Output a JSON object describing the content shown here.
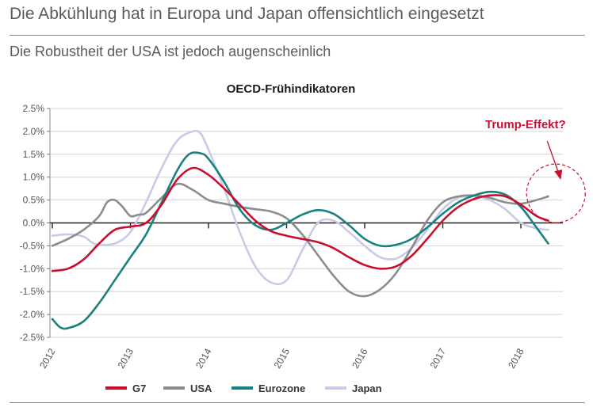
{
  "header": {
    "title": "Die Abkühlung hat in Europa und Japan offensichtlich eingesetzt",
    "subtitle": "Die Robustheit der USA ist jedoch augenscheinlich"
  },
  "chart_data": {
    "type": "line",
    "title": "OECD-Frühindikatoren",
    "xlabel": "",
    "ylabel": "",
    "xlim": [
      2012,
      2018.65
    ],
    "ylim": [
      -2.5,
      2.5
    ],
    "y_ticks": [
      2.5,
      2.0,
      1.5,
      1.0,
      0.5,
      0.0,
      -0.5,
      -1.0,
      -1.5,
      -2.0,
      -2.5
    ],
    "y_tick_labels": [
      "2.5%",
      "2.0%",
      "1.5%",
      "1.0%",
      "0.5%",
      "0.0%",
      "-0.5%",
      "-1.0%",
      "-1.5%",
      "-2.0%",
      "-2.5%"
    ],
    "x_ticks": [
      2012,
      2013,
      2014,
      2015,
      2016,
      2017,
      2018
    ],
    "x_tick_labels": [
      "2012",
      "2013",
      "2014",
      "2015",
      "2016",
      "2017",
      "2018"
    ],
    "grid": "horizontal",
    "legend_position": "bottom",
    "annotation": {
      "text": "Trump-Effekt?",
      "color": "#c8102e",
      "target": {
        "x": 2018.5,
        "y": 0.75
      }
    },
    "series": [
      {
        "name": "G7",
        "color": "#c8102e",
        "x": [
          2012.0,
          2012.2,
          2012.4,
          2012.6,
          2012.8,
          2013.0,
          2013.2,
          2013.4,
          2013.6,
          2013.8,
          2014.0,
          2014.2,
          2014.4,
          2014.6,
          2014.8,
          2015.0,
          2015.2,
          2015.4,
          2015.6,
          2015.8,
          2016.0,
          2016.2,
          2016.4,
          2016.6,
          2016.8,
          2017.0,
          2017.2,
          2017.4,
          2017.6,
          2017.8,
          2018.0,
          2018.2,
          2018.35
        ],
        "y": [
          -1.05,
          -1.0,
          -0.8,
          -0.45,
          -0.15,
          -0.08,
          0.0,
          0.4,
          0.95,
          1.2,
          1.05,
          0.75,
          0.4,
          0.05,
          -0.18,
          -0.28,
          -0.35,
          -0.42,
          -0.55,
          -0.75,
          -0.92,
          -1.0,
          -0.95,
          -0.72,
          -0.35,
          0.05,
          0.35,
          0.52,
          0.6,
          0.58,
          0.4,
          0.15,
          0.05
        ]
      },
      {
        "name": "USA",
        "color": "#8c8c8c",
        "x": [
          2012.0,
          2012.2,
          2012.4,
          2012.6,
          2012.7,
          2012.8,
          2012.9,
          2013.0,
          2013.1,
          2013.2,
          2013.4,
          2013.6,
          2013.8,
          2014.0,
          2014.2,
          2014.4,
          2014.6,
          2014.8,
          2015.0,
          2015.2,
          2015.4,
          2015.6,
          2015.8,
          2016.0,
          2016.2,
          2016.4,
          2016.6,
          2016.8,
          2017.0,
          2017.2,
          2017.4,
          2017.6,
          2017.8,
          2018.0,
          2018.2,
          2018.35
        ],
        "y": [
          -0.5,
          -0.35,
          -0.15,
          0.15,
          0.45,
          0.5,
          0.35,
          0.15,
          0.18,
          0.22,
          0.55,
          0.85,
          0.72,
          0.5,
          0.42,
          0.35,
          0.3,
          0.25,
          0.1,
          -0.25,
          -0.7,
          -1.15,
          -1.5,
          -1.6,
          -1.45,
          -1.1,
          -0.55,
          0.05,
          0.45,
          0.58,
          0.6,
          0.55,
          0.45,
          0.42,
          0.5,
          0.58
        ]
      },
      {
        "name": "Eurozone",
        "color": "#1a8080",
        "x": [
          2012.0,
          2012.1,
          2012.2,
          2012.4,
          2012.6,
          2012.8,
          2013.0,
          2013.2,
          2013.4,
          2013.6,
          2013.75,
          2013.9,
          2014.0,
          2014.2,
          2014.4,
          2014.6,
          2014.8,
          2015.0,
          2015.2,
          2015.4,
          2015.6,
          2015.8,
          2016.0,
          2016.2,
          2016.4,
          2016.6,
          2016.8,
          2017.0,
          2017.2,
          2017.4,
          2017.6,
          2017.8,
          2018.0,
          2018.2,
          2018.35
        ],
        "y": [
          -2.1,
          -2.28,
          -2.3,
          -2.15,
          -1.75,
          -1.25,
          -0.75,
          -0.25,
          0.45,
          1.15,
          1.5,
          1.52,
          1.4,
          0.9,
          0.3,
          -0.05,
          -0.15,
          0.0,
          0.18,
          0.28,
          0.2,
          -0.05,
          -0.35,
          -0.5,
          -0.48,
          -0.35,
          -0.1,
          0.2,
          0.45,
          0.6,
          0.68,
          0.62,
          0.35,
          -0.1,
          -0.45
        ]
      },
      {
        "name": "Japan",
        "color": "#c8cbe6",
        "x": [
          2012.0,
          2012.2,
          2012.4,
          2012.5,
          2012.6,
          2012.8,
          2013.0,
          2013.2,
          2013.4,
          2013.6,
          2013.8,
          2013.9,
          2014.0,
          2014.2,
          2014.4,
          2014.6,
          2014.8,
          2015.0,
          2015.2,
          2015.4,
          2015.6,
          2015.8,
          2016.0,
          2016.2,
          2016.4,
          2016.6,
          2016.8,
          2017.0,
          2017.2,
          2017.4,
          2017.6,
          2017.8,
          2018.0,
          2018.2,
          2018.35
        ],
        "y": [
          -0.28,
          -0.25,
          -0.3,
          -0.42,
          -0.48,
          -0.45,
          -0.2,
          0.45,
          1.2,
          1.8,
          2.0,
          1.95,
          1.6,
          0.75,
          -0.2,
          -0.95,
          -1.3,
          -1.25,
          -0.6,
          0.0,
          0.05,
          -0.2,
          -0.5,
          -0.75,
          -0.78,
          -0.55,
          -0.15,
          0.3,
          0.55,
          0.58,
          0.5,
          0.3,
          0.0,
          -0.12,
          -0.15
        ]
      }
    ]
  }
}
